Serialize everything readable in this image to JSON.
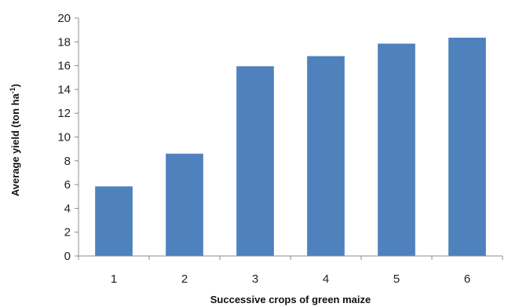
{
  "chart_data": {
    "type": "bar",
    "categories": [
      "1",
      "2",
      "3",
      "4",
      "5",
      "6"
    ],
    "values": [
      5.85,
      8.6,
      15.95,
      16.8,
      17.85,
      18.35
    ],
    "title": "",
    "xlabel": "Successive crops of green maize",
    "ylabel": {
      "main": "Average yield (ton ha",
      "superscript": "-1",
      "close": ")"
    },
    "ylim": [
      0,
      20
    ],
    "yticks": [
      "0",
      "2",
      "4",
      "6",
      "8",
      "10",
      "12",
      "14",
      "16",
      "18",
      "20"
    ],
    "grid": false,
    "legend": "none",
    "bar_color": "#4f81bd",
    "axis_color": "#8c8c8c"
  }
}
